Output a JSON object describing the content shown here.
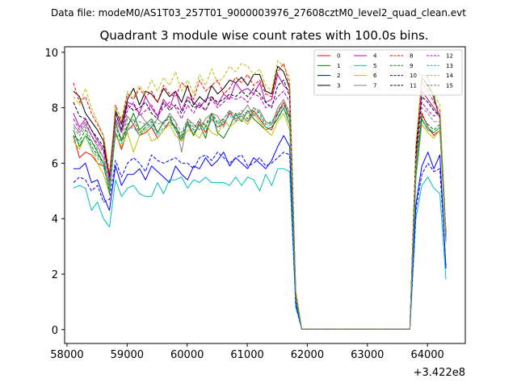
{
  "chart_data": {
    "type": "line",
    "suptitle": "Data file: modeM0/AS1T03_257T01_9000003976_27608cztM0_level2_quad_clean.evt",
    "title": "Quadrant 3 module wise count rates with 100.0s bins.",
    "xlabel": "",
    "ylabel": "",
    "x_offset_label": "+3.422e8",
    "xlim": [
      57960,
      64630
    ],
    "ylim": [
      -0.5,
      10.2
    ],
    "xticks": [
      58000,
      59000,
      60000,
      61000,
      62000,
      63000,
      64000
    ],
    "xtick_labels": [
      "58000",
      "59000",
      "60000",
      "61000",
      "62000",
      "63000",
      "64000"
    ],
    "yticks": [
      0,
      2,
      4,
      6,
      8,
      10
    ],
    "ytick_labels": [
      "0",
      "2",
      "4",
      "6",
      "8",
      "10"
    ],
    "legend_position": "top-right",
    "x": [
      58107,
      58207,
      58307,
      58407,
      58507,
      58607,
      58707,
      58807,
      58907,
      59007,
      59107,
      59207,
      59307,
      59407,
      59507,
      59607,
      59707,
      59807,
      59907,
      60007,
      60107,
      60207,
      60307,
      60407,
      60507,
      60607,
      60707,
      60807,
      60907,
      61007,
      61107,
      61207,
      61307,
      61407,
      61507,
      61607,
      61707,
      61807,
      61907,
      62007,
      62107,
      62207,
      62307,
      62407,
      62507,
      62607,
      62707,
      62807,
      62907,
      63007,
      63107,
      63207,
      63307,
      63407,
      63507,
      63607,
      63707,
      63807,
      63907,
      64007,
      64107,
      64207,
      64307
    ],
    "series": [
      {
        "name": "0",
        "color": "#ff0000",
        "dash": "solid",
        "values": [
          7.0,
          6.2,
          6.4,
          6.3,
          6.0,
          5.9,
          5.0,
          7.1,
          6.5,
          7.2,
          7.4,
          7.0,
          7.1,
          7.3,
          6.9,
          7.2,
          7.5,
          7.3,
          6.9,
          7.4,
          7.0,
          7.5,
          7.1,
          7.6,
          7.3,
          7.4,
          7.8,
          7.6,
          7.7,
          7.5,
          7.9,
          7.6,
          7.3,
          7.2,
          7.8,
          8.2,
          7.6,
          1.2,
          0.02,
          0.02,
          0.02,
          0.02,
          0.02,
          0.02,
          0.02,
          0.02,
          0.02,
          0.02,
          0.02,
          0.02,
          0.02,
          0.02,
          0.02,
          0.02,
          0.02,
          0.02,
          0.02,
          5.5,
          7.8,
          7.3,
          7.0,
          7.2,
          3.2
        ]
      },
      {
        "name": "1",
        "color": "#008000",
        "dash": "solid",
        "values": [
          7.2,
          6.6,
          7.0,
          6.8,
          6.4,
          6.0,
          5.3,
          7.5,
          6.8,
          7.3,
          7.8,
          7.2,
          7.4,
          7.6,
          7.1,
          7.5,
          7.7,
          7.2,
          6.8,
          7.5,
          7.0,
          7.4,
          6.9,
          7.8,
          7.1,
          6.9,
          7.3,
          7.8,
          7.5,
          7.9,
          7.6,
          7.4,
          7.2,
          7.3,
          7.6,
          8.0,
          7.4,
          1.0,
          0.02,
          0.02,
          0.02,
          0.02,
          0.02,
          0.02,
          0.02,
          0.02,
          0.02,
          0.02,
          0.02,
          0.02,
          0.02,
          0.02,
          0.02,
          0.02,
          0.02,
          0.02,
          0.02,
          5.6,
          7.6,
          7.2,
          7.1,
          7.3,
          3.4
        ]
      },
      {
        "name": "2",
        "color": "#0000ff",
        "dash": "solid",
        "values": [
          5.8,
          5.8,
          6.0,
          5.3,
          5.4,
          4.8,
          4.3,
          5.9,
          5.2,
          5.6,
          5.6,
          5.8,
          5.4,
          5.9,
          5.7,
          5.5,
          5.3,
          5.9,
          5.6,
          5.4,
          5.9,
          5.8,
          6.2,
          5.9,
          6.1,
          6.4,
          5.9,
          6.2,
          6.0,
          5.8,
          6.2,
          6.0,
          5.8,
          6.1,
          6.6,
          7.0,
          6.6,
          0.9,
          0.02,
          0.02,
          0.02,
          0.02,
          0.02,
          0.02,
          0.02,
          0.02,
          0.02,
          0.02,
          0.02,
          0.02,
          0.02,
          0.02,
          0.02,
          0.02,
          0.02,
          0.02,
          0.02,
          4.5,
          5.9,
          6.4,
          5.8,
          6.3,
          2.2
        ]
      },
      {
        "name": "3",
        "color": "#000000",
        "dash": "solid",
        "values": [
          8.6,
          8.4,
          7.8,
          7.5,
          7.2,
          6.8,
          5.5,
          7.9,
          7.4,
          8.3,
          8.7,
          8.1,
          8.6,
          8.5,
          8.2,
          8.7,
          8.4,
          8.6,
          8.2,
          8.8,
          8.1,
          8.4,
          8.2,
          8.8,
          8.5,
          8.7,
          9.0,
          8.9,
          9.1,
          8.8,
          9.2,
          9.2,
          8.6,
          8.5,
          9.5,
          9.3,
          8.7,
          1.3,
          0.02,
          0.02,
          0.02,
          0.02,
          0.02,
          0.02,
          0.02,
          0.02,
          0.02,
          0.02,
          0.02,
          0.02,
          0.02,
          0.02,
          0.02,
          0.02,
          0.02,
          0.02,
          0.02,
          6.5,
          9.1,
          8.8,
          8.4,
          7.6,
          3.5
        ]
      },
      {
        "name": "4",
        "color": "#bf00bf",
        "dash": "solid",
        "values": [
          7.8,
          7.3,
          7.6,
          7.2,
          6.8,
          6.5,
          5.6,
          7.8,
          7.2,
          8.2,
          8.1,
          7.8,
          8.4,
          8.0,
          7.7,
          8.3,
          8.0,
          8.6,
          7.9,
          8.4,
          8.2,
          8.0,
          8.3,
          8.4,
          8.1,
          8.5,
          8.3,
          8.9,
          8.6,
          8.7,
          8.5,
          8.9,
          8.2,
          8.3,
          9.2,
          8.8,
          8.6,
          1.2,
          0.02,
          0.02,
          0.02,
          0.02,
          0.02,
          0.02,
          0.02,
          0.02,
          0.02,
          0.02,
          0.02,
          0.02,
          0.02,
          0.02,
          0.02,
          0.02,
          0.02,
          0.02,
          0.02,
          6.2,
          8.6,
          8.3,
          8.0,
          7.7,
          3.3
        ]
      },
      {
        "name": "5",
        "color": "#00bfbf",
        "dash": "solid",
        "values": [
          5.1,
          5.2,
          5.1,
          4.3,
          4.6,
          4.0,
          3.7,
          5.4,
          4.8,
          5.1,
          5.2,
          4.9,
          4.8,
          4.8,
          5.3,
          4.9,
          5.4,
          5.4,
          5.5,
          5.1,
          5.4,
          5.3,
          5.5,
          5.3,
          5.3,
          5.3,
          5.2,
          5.5,
          5.2,
          5.5,
          5.4,
          5.0,
          5.6,
          5.2,
          5.8,
          5.8,
          5.7,
          0.8,
          0.02,
          0.02,
          0.02,
          0.02,
          0.02,
          0.02,
          0.02,
          0.02,
          0.02,
          0.02,
          0.02,
          0.02,
          0.02,
          0.02,
          0.02,
          0.02,
          0.02,
          0.02,
          0.02,
          4.0,
          5.2,
          5.5,
          5.1,
          4.9,
          1.8
        ]
      },
      {
        "name": "6",
        "color": "#bfbf00",
        "dash": "solid",
        "values": [
          6.8,
          6.5,
          7.0,
          6.5,
          6.0,
          5.6,
          4.9,
          7.0,
          6.6,
          7.1,
          6.4,
          7.0,
          7.3,
          6.8,
          6.9,
          7.2,
          7.4,
          7.0,
          6.8,
          7.2,
          7.1,
          6.9,
          7.4,
          7.1,
          7.0,
          7.6,
          7.3,
          7.5,
          7.6,
          7.4,
          7.8,
          7.5,
          7.2,
          7.0,
          7.5,
          7.8,
          7.2,
          1.1,
          0.02,
          0.02,
          0.02,
          0.02,
          0.02,
          0.02,
          0.02,
          0.02,
          0.02,
          0.02,
          0.02,
          0.02,
          0.02,
          0.02,
          0.02,
          0.02,
          0.02,
          0.02,
          0.02,
          5.4,
          7.4,
          7.1,
          6.9,
          7.2,
          3.1
        ]
      },
      {
        "name": "7",
        "color": "#808080",
        "dash": "solid",
        "values": [
          7.4,
          7.1,
          7.4,
          7.0,
          6.6,
          6.2,
          5.2,
          7.6,
          7.1,
          7.7,
          7.4,
          7.8,
          7.5,
          7.3,
          7.6,
          7.4,
          7.8,
          7.5,
          6.4,
          7.6,
          7.4,
          7.2,
          7.6,
          7.8,
          7.7,
          7.3,
          7.9,
          7.5,
          7.8,
          8.1,
          7.7,
          7.9,
          7.5,
          7.4,
          8.0,
          8.3,
          7.8,
          1.2,
          0.02,
          0.02,
          0.02,
          0.02,
          0.02,
          0.02,
          0.02,
          0.02,
          0.02,
          0.02,
          0.02,
          0.02,
          0.02,
          0.02,
          0.02,
          0.02,
          0.02,
          0.02,
          0.02,
          5.8,
          9.2,
          9.1,
          8.3,
          7.6,
          3.2
        ]
      },
      {
        "name": "8",
        "color": "#ff0000",
        "dash": "dashed",
        "values": [
          8.9,
          8.2,
          8.4,
          7.8,
          7.4,
          7.0,
          5.4,
          8.1,
          7.5,
          8.5,
          8.3,
          8.7,
          8.4,
          8.6,
          8.2,
          8.8,
          8.5,
          8.4,
          8.9,
          8.7,
          8.3,
          9.0,
          8.6,
          8.8,
          9.0,
          8.5,
          8.7,
          9.1,
          8.9,
          9.2,
          8.8,
          9.0,
          8.5,
          8.4,
          9.3,
          9.6,
          8.8,
          1.4,
          0.02,
          0.02,
          0.02,
          0.02,
          0.02,
          0.02,
          0.02,
          0.02,
          0.02,
          0.02,
          0.02,
          0.02,
          0.02,
          0.02,
          0.02,
          0.02,
          0.02,
          0.02,
          0.02,
          6.6,
          8.9,
          8.6,
          8.2,
          7.9,
          3.5
        ]
      },
      {
        "name": "9",
        "color": "#008000",
        "dash": "dashed",
        "values": [
          7.0,
          6.8,
          7.2,
          6.6,
          6.3,
          6.0,
          4.9,
          7.3,
          6.8,
          7.4,
          7.6,
          7.1,
          7.3,
          7.5,
          7.1,
          7.5,
          7.6,
          7.3,
          7.0,
          7.5,
          7.2,
          7.6,
          7.3,
          7.8,
          7.4,
          7.6,
          7.9,
          7.7,
          7.8,
          7.6,
          8.0,
          7.8,
          7.4,
          7.5,
          7.8,
          8.1,
          7.7,
          1.1,
          0.02,
          0.02,
          0.02,
          0.02,
          0.02,
          0.02,
          0.02,
          0.02,
          0.02,
          0.02,
          0.02,
          0.02,
          0.02,
          0.02,
          0.02,
          0.02,
          0.02,
          0.02,
          0.02,
          5.6,
          7.7,
          7.4,
          7.2,
          7.4,
          3.3
        ]
      },
      {
        "name": "10",
        "color": "#0000ff",
        "dash": "dashed",
        "values": [
          5.3,
          5.5,
          5.4,
          5.0,
          5.2,
          4.6,
          4.7,
          6.1,
          5.5,
          6.0,
          6.2,
          6.0,
          5.7,
          6.3,
          6.1,
          6.0,
          6.1,
          6.2,
          6.0,
          6.0,
          5.8,
          6.2,
          6.3,
          6.1,
          6.4,
          6.2,
          6.0,
          6.2,
          6.3,
          5.9,
          6.0,
          6.2,
          5.9,
          6.0,
          6.2,
          6.4,
          6.3,
          0.9,
          0.02,
          0.02,
          0.02,
          0.02,
          0.02,
          0.02,
          0.02,
          0.02,
          0.02,
          0.02,
          0.02,
          0.02,
          0.02,
          0.02,
          0.02,
          0.02,
          0.02,
          0.02,
          0.02,
          4.3,
          5.6,
          6.0,
          5.7,
          5.8,
          2.3
        ]
      },
      {
        "name": "11",
        "color": "#000000",
        "dash": "dashed",
        "values": [
          8.2,
          7.7,
          7.6,
          7.2,
          6.9,
          6.6,
          5.5,
          7.8,
          7.2,
          8.1,
          7.9,
          8.0,
          8.2,
          7.8,
          7.6,
          8.2,
          7.9,
          8.1,
          7.8,
          8.3,
          8.0,
          8.1,
          7.9,
          8.4,
          8.2,
          8.3,
          8.5,
          8.4,
          8.6,
          8.4,
          8.7,
          8.5,
          8.2,
          8.0,
          8.8,
          9.0,
          8.4,
          1.2,
          0.02,
          0.02,
          0.02,
          0.02,
          0.02,
          0.02,
          0.02,
          0.02,
          0.02,
          0.02,
          0.02,
          0.02,
          0.02,
          0.02,
          0.02,
          0.02,
          0.02,
          0.02,
          0.02,
          6.3,
          8.4,
          8.2,
          7.9,
          7.7,
          3.4
        ]
      },
      {
        "name": "12",
        "color": "#bf00bf",
        "dash": "dashed",
        "values": [
          7.6,
          7.2,
          7.5,
          7.0,
          6.7,
          6.4,
          5.4,
          7.6,
          7.1,
          7.9,
          8.2,
          7.7,
          7.9,
          8.1,
          7.7,
          8.0,
          8.2,
          8.0,
          7.6,
          8.1,
          7.8,
          8.2,
          7.9,
          8.3,
          8.0,
          8.2,
          8.4,
          8.3,
          8.4,
          8.2,
          8.5,
          8.4,
          8.0,
          8.1,
          8.4,
          8.6,
          8.2,
          1.2,
          0.02,
          0.02,
          0.02,
          0.02,
          0.02,
          0.02,
          0.02,
          0.02,
          0.02,
          0.02,
          0.02,
          0.02,
          0.02,
          0.02,
          0.02,
          0.02,
          0.02,
          0.02,
          0.02,
          6.0,
          8.2,
          7.9,
          7.7,
          7.8,
          3.3
        ]
      },
      {
        "name": "13",
        "color": "#00bfbf",
        "dash": "dashed",
        "values": [
          6.9,
          6.7,
          7.0,
          6.5,
          6.2,
          5.9,
          5.0,
          7.1,
          6.7,
          7.2,
          7.3,
          7.0,
          7.2,
          7.4,
          7.0,
          7.3,
          7.5,
          7.2,
          6.9,
          7.4,
          7.1,
          7.4,
          7.2,
          7.6,
          7.3,
          7.5,
          7.7,
          7.6,
          7.7,
          7.5,
          7.8,
          7.7,
          7.3,
          7.4,
          7.7,
          8.0,
          7.6,
          1.1,
          0.02,
          0.02,
          0.02,
          0.02,
          0.02,
          0.02,
          0.02,
          0.02,
          0.02,
          0.02,
          0.02,
          0.02,
          0.02,
          0.02,
          0.02,
          0.02,
          0.02,
          0.02,
          0.02,
          5.5,
          7.5,
          7.3,
          7.1,
          7.3,
          3.2
        ]
      },
      {
        "name": "14",
        "color": "#bfbf00",
        "dash": "dashed",
        "values": [
          8.4,
          8.1,
          8.7,
          8.0,
          7.5,
          7.0,
          5.7,
          8.0,
          7.6,
          8.6,
          8.4,
          8.8,
          8.5,
          9.0,
          8.6,
          9.1,
          8.8,
          9.3,
          8.6,
          9.0,
          8.5,
          9.2,
          8.8,
          9.4,
          8.9,
          9.1,
          9.5,
          9.3,
          9.6,
          9.5,
          9.2,
          9.4,
          8.8,
          8.6,
          9.7,
          9.5,
          9.1,
          1.4,
          0.02,
          0.02,
          0.02,
          0.02,
          0.02,
          0.02,
          0.02,
          0.02,
          0.02,
          0.02,
          0.02,
          0.02,
          0.02,
          0.02,
          0.02,
          0.02,
          0.02,
          0.02,
          0.02,
          6.7,
          9.1,
          8.7,
          8.5,
          8.1,
          3.6
        ]
      },
      {
        "name": "15",
        "color": "#808080",
        "dash": "dashed",
        "values": [
          7.3,
          7.0,
          7.3,
          6.8,
          6.5,
          6.2,
          5.1,
          7.4,
          6.9,
          7.6,
          7.5,
          7.5,
          7.4,
          7.6,
          7.4,
          7.5,
          7.7,
          7.5,
          7.1,
          7.6,
          7.3,
          7.5,
          7.4,
          7.8,
          7.5,
          7.6,
          7.9,
          7.7,
          7.9,
          7.8,
          8.0,
          7.9,
          7.5,
          7.4,
          7.9,
          8.2,
          7.8,
          1.2,
          0.02,
          0.02,
          0.02,
          0.02,
          0.02,
          0.02,
          0.02,
          0.02,
          0.02,
          0.02,
          0.02,
          0.02,
          0.02,
          0.02,
          0.02,
          0.02,
          0.02,
          0.02,
          0.02,
          5.8,
          8.0,
          7.8,
          7.5,
          7.5,
          3.3
        ]
      }
    ]
  }
}
